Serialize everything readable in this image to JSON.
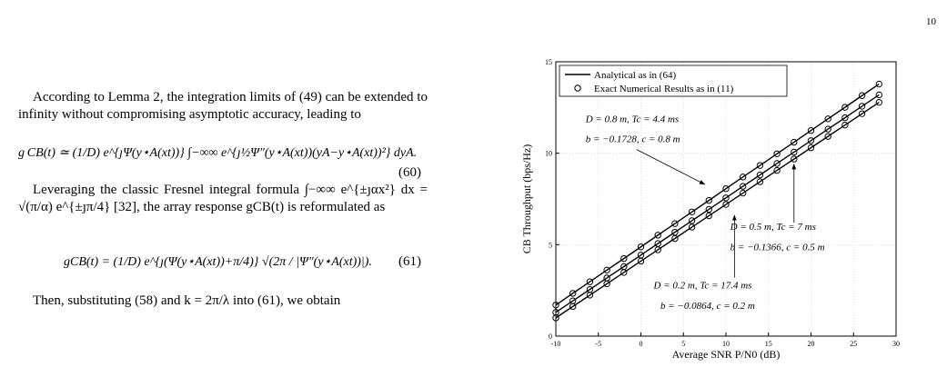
{
  "page_number": "10",
  "text": {
    "para1": "According to Lemma 2, the integration limits of (49) can be extended to infinity without compromising asymptotic accuracy, leading to",
    "eq60": "g CB(t) ≃ (1/D) e^{ȷΨ(y⋆A(xt))} ∫−∞∞ e^{ȷ½Ψ″(y⋆A(xt))(yA−y⋆A(xt))²} dyA.",
    "eq60_number": "(60)",
    "para2": "Leveraging the classic Fresnel integral formula ∫−∞∞ e^{±ȷαx²} dx = √(π/α) e^{±ȷπ/4} [32], the array response gCB(t) is reformulated as",
    "eq61": "gCB(t) = (1/D) e^{ȷ(Ψ(y⋆A(xt))+π/4)} √(2π / |Ψ″(y⋆A(xt))|).",
    "eq61_number": "(61)",
    "para3": "Then, substituting (58) and k = 2π/λ into (61), we obtain"
  },
  "chart_data": {
    "type": "line",
    "xlabel": "Average SNR P/N0 (dB)",
    "ylabel": "CB Throughput (bps/Hz)",
    "xlim": [
      -10,
      30
    ],
    "ylim": [
      0,
      15
    ],
    "xticks": [
      -10,
      -5,
      0,
      5,
      10,
      15,
      20,
      25,
      30
    ],
    "yticks": [
      0,
      5,
      10,
      15
    ],
    "grid": true,
    "legend": [
      {
        "label": "Analytical as in (64)",
        "style": "line"
      },
      {
        "label": "Exact Numerical Results as in (11)",
        "style": "marker"
      }
    ],
    "legend_corner": "top-left",
    "color": "#000000",
    "x": [
      -10,
      -8,
      -6,
      -4,
      -2,
      0,
      2,
      4,
      6,
      8,
      10,
      12,
      14,
      16,
      18,
      20,
      22,
      24,
      26,
      28
    ],
    "series": [
      {
        "values": [
          1.7,
          2.34,
          2.97,
          3.61,
          4.24,
          4.88,
          5.52,
          6.15,
          6.79,
          7.42,
          8.06,
          8.7,
          9.33,
          9.97,
          10.6,
          11.24,
          11.88,
          12.51,
          13.15,
          13.78
        ]
      },
      {
        "values": [
          1.3,
          1.93,
          2.55,
          3.18,
          3.8,
          4.43,
          5.06,
          5.68,
          6.31,
          6.93,
          7.56,
          8.19,
          8.81,
          9.44,
          10.06,
          10.69,
          11.32,
          11.94,
          12.57,
          13.19
        ]
      },
      {
        "values": [
          1.0,
          1.62,
          2.24,
          2.86,
          3.48,
          4.1,
          4.72,
          5.34,
          5.96,
          6.58,
          7.2,
          7.82,
          8.44,
          9.06,
          9.68,
          10.3,
          10.92,
          11.54,
          12.16,
          12.78
        ]
      }
    ],
    "annotations": [
      {
        "text": "D = 0.8 m, Tc = 4.4 ms",
        "x": -6.5,
        "y": 11.7
      },
      {
        "text": "b = −0.1728, c = 0.8 m",
        "x": -6.5,
        "y": 10.6
      },
      {
        "text": "D = 0.5 m, Tc = 7 ms",
        "x": 10.5,
        "y": 5.8
      },
      {
        "text": "b = −0.1366, c = 0.5 m",
        "x": 10.5,
        "y": 4.7
      },
      {
        "text": "D = 0.2 m, Tc = 17.4 ms",
        "x": 1.5,
        "y": 2.6
      },
      {
        "text": "b = −0.0864, c = 0.2 m",
        "x": 2.3,
        "y": 1.5
      }
    ]
  }
}
